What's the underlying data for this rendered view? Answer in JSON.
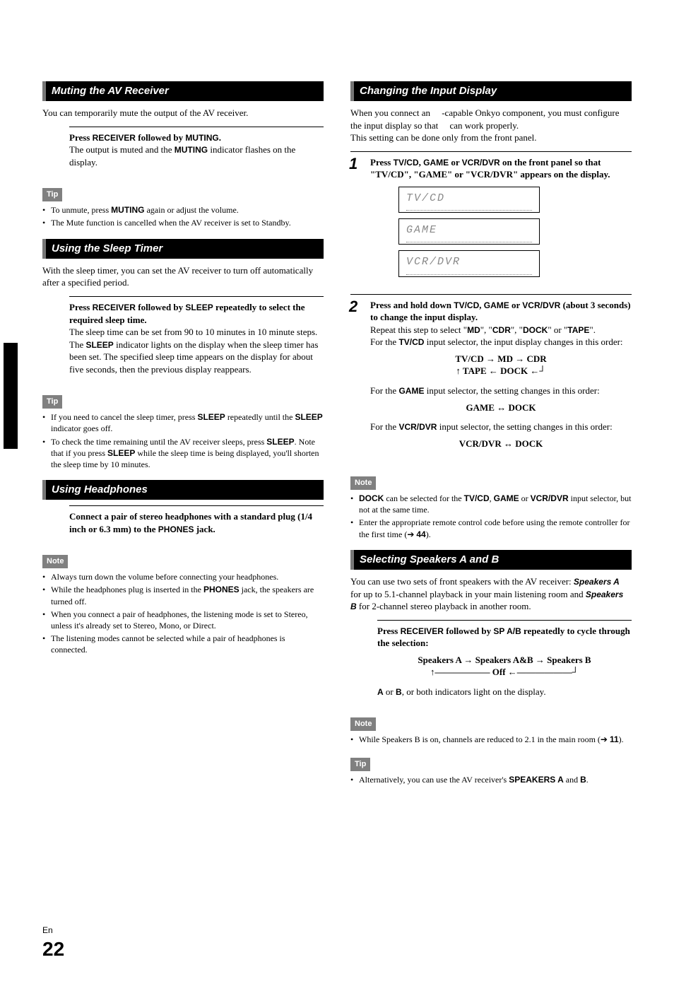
{
  "page": {
    "lang": "En",
    "number": "22"
  },
  "left": {
    "muting": {
      "header": "Muting the AV Receiver",
      "intro": "You can temporarily mute the output of the AV receiver.",
      "step": "Press <b>RECEIVER</b> followed by <b>MUTING</b>.",
      "step_body": "The output is muted and the <b>MUTING</b> indicator flashes on the display.",
      "tip_label": "Tip",
      "tips": [
        "To unmute, press <b>MUTING</b> again or adjust the volume.",
        "The Mute function is cancelled when the AV receiver is set to Standby."
      ]
    },
    "sleep": {
      "header": "Using the Sleep Timer",
      "intro": "With the sleep timer, you can set the AV receiver to turn off automatically after a specified period.",
      "step": "Press <b>RECEIVER</b> followed by <b>SLEEP</b> repeatedly to select the required sleep time.",
      "step_body": "The sleep time can be set from 90 to 10 minutes in 10 minute steps.<br>The <b>SLEEP</b> indicator lights on the display when the sleep timer has been set. The specified sleep time appears on the display for about five seconds, then the previous display reappears.",
      "tip_label": "Tip",
      "tips": [
        "If you need to cancel the sleep timer, press <b>SLEEP</b> repeatedly until the <b>SLEEP</b> indicator goes off.",
        "To check the time remaining until the AV receiver sleeps, press <b>SLEEP</b>. Note that if you press <b>SLEEP</b> while the sleep time is being displayed, you'll shorten the sleep time by 10 minutes."
      ]
    },
    "headphones": {
      "header": "Using Headphones",
      "step": "Connect a pair of stereo headphones with a standard plug (1/4 inch or 6.3 mm) to the <b>PHONES</b> jack.",
      "note_label": "Note",
      "notes": [
        "Always turn down the volume before connecting your headphones.",
        "While the headphones plug is inserted in the <b>PHONES</b> jack, the speakers are turned off.",
        "When you connect a pair of headphones, the listening mode is set to Stereo, unless it's already set to Stereo, Mono, or Direct.",
        "The listening modes cannot be selected while a pair of headphones is connected."
      ]
    }
  },
  "right": {
    "input": {
      "header": "Changing the Input Display",
      "intro": "When you connect an&nbsp;&nbsp;&nbsp;&nbsp;&nbsp;-capable Onkyo component, you must configure the input display so that&nbsp;&nbsp;&nbsp;&nbsp;&nbsp;can work properly.<br>This setting can be done only from the front panel.",
      "step1_num": "1",
      "step1": "Press <b>TV/CD</b>, <b>GAME</b> or <b>VCR/DVR</b> on the front panel so that \"TV/CD\", \"GAME\" or \"VCR/DVR\" appears on the display.",
      "displays": [
        "TV/CD",
        "GAME",
        "VCR/DVR"
      ],
      "step2_num": "2",
      "step2": "Press and hold down <b>TV/CD</b>, <b>GAME</b> or <b>VCR/DVR</b> (about 3 seconds) to change the input display.",
      "step2_body1": "Repeat this step to select \"<b>MD</b>\", \"<b>CDR</b>\", \"<b>DOCK</b>\" or \"<b>TAPE</b>\".",
      "step2_body2": "For the <b>TV/CD</b> input selector, the input display changes in this order:",
      "order1_a": "TV/CD → MD → CDR",
      "order1_b": "↑ TAPE ← DOCK ←┘",
      "step2_body3": "For the <b>GAME</b> input selector, the setting changes in this order:",
      "order2": "GAME ↔ DOCK",
      "step2_body4": "For the <b>VCR/DVR</b> input selector, the setting changes in this order:",
      "order3": "VCR/DVR ↔ DOCK",
      "note_label": "Note",
      "notes": [
        "<b>DOCK</b> can be selected for the <b>TV/CD</b>, <b>GAME</b> or <b>VCR/DVR</b> input selector, but not at the same time.",
        "Enter the appropriate remote control code before using the remote controller for the first time (➔ <b>44</b>)."
      ]
    },
    "speakers": {
      "header": "Selecting Speakers A and B",
      "intro": "You can use two sets of front speakers with the AV receiver: <b><i>Speakers A</i></b> for up to 5.1-channel playback in your main listening room and <b><i>Speakers B</i></b> for 2-channel stereo playback in another room.",
      "step": "Press <b>RECEIVER</b> followed by <b>SP A/B</b> repeatedly to cycle through the selection:",
      "order_a": "Speakers A → Speakers A&amp;B → Speakers B",
      "order_b": "↑―――――― Off ←――――――┘",
      "step_body": "<b>A</b> or <b>B</b>, or both indicators light on the display.",
      "note_label": "Note",
      "notes": [
        "While Speakers B is on, channels are reduced to 2.1 in the main room (➔ <b>11</b>)."
      ],
      "tip_label": "Tip",
      "tips": [
        "Alternatively, you can use the AV receiver's <b>SPEAKERS A</b> and <b>B</b>."
      ]
    }
  }
}
